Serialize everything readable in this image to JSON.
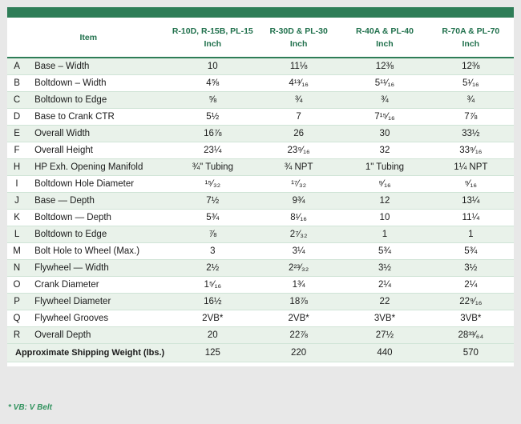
{
  "colors": {
    "accent_green": "#2e7d57",
    "header_text_green": "#21714d",
    "row_tint": "#e9f2ea",
    "row_separator": "#d0e4d6",
    "footnote_green": "#33935f",
    "page_background": "#e8e8e8"
  },
  "chart_data": {
    "type": "table",
    "title": "",
    "item_header": "Item",
    "col_headers": [
      {
        "models": "R-10D, R-15B, PL-15",
        "unit": "Inch"
      },
      {
        "models": "R-30D & PL-30",
        "unit": "Inch"
      },
      {
        "models": "R-40A & PL-40",
        "unit": "Inch"
      },
      {
        "models": "R-70A & PL-70",
        "unit": "Inch"
      }
    ],
    "rows": [
      {
        "letter": "A",
        "item": "Base – Width",
        "values": [
          "10",
          "11⅛",
          "12⅜",
          "12⅜"
        ]
      },
      {
        "letter": "B",
        "item": "Boltdown – Width",
        "values": [
          "4⅝",
          "4¹³⁄₁₆",
          "5¹¹⁄₁₆",
          "5¹⁄₁₆"
        ]
      },
      {
        "letter": "C",
        "item": "Boltdown to Edge",
        "values": [
          "⅝",
          "¾",
          "¾",
          "¾"
        ]
      },
      {
        "letter": "D",
        "item": "Base to Crank CTR",
        "values": [
          "5½",
          "7",
          "7¹⁵⁄₁₆",
          "7⅞"
        ]
      },
      {
        "letter": "E",
        "item": "Overall Width",
        "values": [
          "16⅞",
          "26",
          "30",
          "33½"
        ]
      },
      {
        "letter": "F",
        "item": "Overall Height",
        "values": [
          "23¼",
          "23⁹⁄₁₆",
          "32",
          "33⁹⁄₁₆"
        ]
      },
      {
        "letter": "H",
        "item": "HP Exh. Opening Manifold",
        "values": [
          "¾\" Tubing",
          "¾ NPT",
          "1\" Tubing",
          "1¼ NPT"
        ]
      },
      {
        "letter": "I",
        "item": "Boltdown Hole Diameter",
        "values": [
          "¹⁵⁄₃₂",
          "¹⁷⁄₃₂",
          "⁹⁄₁₆",
          "⁹⁄₁₆"
        ]
      },
      {
        "letter": "J",
        "item": "Base — Depth",
        "values": [
          "7½",
          "9¾",
          "12",
          "13¼"
        ]
      },
      {
        "letter": "K",
        "item": "Boltdown — Depth",
        "values": [
          "5¾",
          "8¹⁄₁₆",
          "10",
          "11¼"
        ]
      },
      {
        "letter": "L",
        "item": "Boltdown to Edge",
        "values": [
          "⅞",
          "2⁷⁄₃₂",
          "1",
          "1"
        ]
      },
      {
        "letter": "M",
        "item": "Bolt Hole to Wheel (Max.)",
        "values": [
          "3",
          "3¼",
          "5¾",
          "5¾"
        ]
      },
      {
        "letter": "N",
        "item": "Flywheel — Width",
        "values": [
          "2½",
          "2²³⁄₃₂",
          "3½",
          "3½"
        ]
      },
      {
        "letter": "O",
        "item": "Crank Diameter",
        "values": [
          "1⁵⁄₁₆",
          "1¾",
          "2¼",
          "2¼"
        ]
      },
      {
        "letter": "P",
        "item": "Flywheel Diameter",
        "values": [
          "16½",
          "18⅞",
          "22",
          "22⁹⁄₁₆"
        ]
      },
      {
        "letter": "Q",
        "item": "Flywheel Grooves",
        "values": [
          "2VB*",
          "2VB*",
          "3VB*",
          "3VB*"
        ]
      },
      {
        "letter": "R",
        "item": "Overall Depth",
        "values": [
          "20",
          "22⅞",
          "27½",
          "28³³⁄₆₄"
        ]
      }
    ],
    "footer_row": {
      "label": "Approximate Shipping Weight (lbs.)",
      "values": [
        "125",
        "220",
        "440",
        "570"
      ]
    },
    "footnote": "* VB: V Belt"
  }
}
